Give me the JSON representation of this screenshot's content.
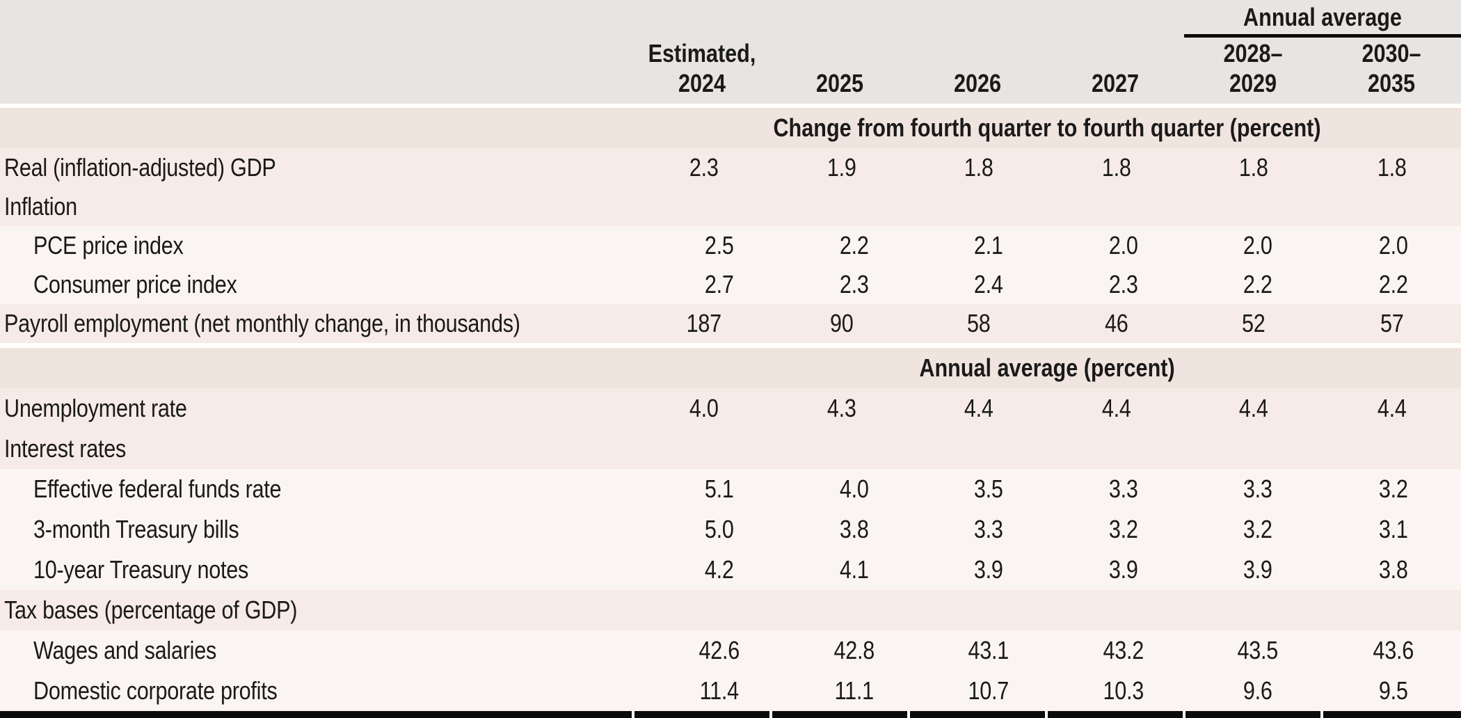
{
  "table": {
    "annual_average_label": "Annual average",
    "columns": [
      {
        "line1": "Estimated,",
        "line2": "2024"
      },
      {
        "line1": "",
        "line2": "2025"
      },
      {
        "line1": "",
        "line2": "2026"
      },
      {
        "line1": "",
        "line2": "2027"
      },
      {
        "line1": "2028–",
        "line2": "2029"
      },
      {
        "line1": "2030–",
        "line2": "2035"
      }
    ],
    "sections": [
      {
        "heading": "Change from fourth quarter to fourth quarter (percent)",
        "rows": [
          {
            "label": "Real (inflation-adjusted) GDP",
            "indent": 0,
            "shade": "pink",
            "values": [
              "2.3",
              "1.9",
              "1.8",
              "1.8",
              "1.8",
              "1.8"
            ]
          },
          {
            "label": "Inflation",
            "indent": 0,
            "shade": "pink",
            "values": []
          },
          {
            "label": "PCE price index",
            "indent": 1,
            "shade": "light",
            "values": [
              "2.5",
              "2.2",
              "2.1",
              "2.0",
              "2.0",
              "2.0"
            ]
          },
          {
            "label": "Consumer price index",
            "indent": 1,
            "shade": "light",
            "values": [
              "2.7",
              "2.3",
              "2.4",
              "2.3",
              "2.2",
              "2.2"
            ]
          },
          {
            "label": "Payroll employment (net monthly change, in thousands)",
            "indent": 0,
            "shade": "pink",
            "values": [
              "187",
              "90",
              "58",
              "46",
              "52",
              "57"
            ]
          }
        ]
      },
      {
        "heading": "Annual average (percent)",
        "rows": [
          {
            "label": "Unemployment rate",
            "indent": 0,
            "shade": "pink",
            "values": [
              "4.0",
              "4.3",
              "4.4",
              "4.4",
              "4.4",
              "4.4"
            ]
          },
          {
            "label": "Interest rates",
            "indent": 0,
            "shade": "pink",
            "values": []
          },
          {
            "label": "Effective federal funds rate",
            "indent": 1,
            "shade": "light",
            "values": [
              "5.1",
              "4.0",
              "3.5",
              "3.3",
              "3.3",
              "3.2"
            ]
          },
          {
            "label": "3-month Treasury bills",
            "indent": 1,
            "shade": "light",
            "values": [
              "5.0",
              "3.8",
              "3.3",
              "3.2",
              "3.2",
              "3.1"
            ]
          },
          {
            "label": "10-year Treasury notes",
            "indent": 1,
            "shade": "light",
            "values": [
              "4.2",
              "4.1",
              "3.9",
              "3.9",
              "3.9",
              "3.8"
            ]
          },
          {
            "label": "Tax bases (percentage of GDP)",
            "indent": 0,
            "shade": "pink",
            "values": []
          },
          {
            "label": "Wages and salaries",
            "indent": 1,
            "shade": "light",
            "values": [
              "42.6",
              "42.8",
              "43.1",
              "43.2",
              "43.5",
              "43.6"
            ]
          },
          {
            "label": "Domestic corporate profits",
            "indent": 1,
            "shade": "light",
            "values": [
              "11.4",
              "11.1",
              "10.7",
              "10.3",
              "9.6",
              "9.5"
            ]
          }
        ]
      }
    ],
    "colors": {
      "header_bg": "#e8e4e1",
      "section_band_bg": "#f0e4de",
      "row_pink_bg": "#f6ebe6",
      "row_light_bg": "#faf5f2",
      "rule_black": "#0b0b0b",
      "text": "#1a1a1a"
    }
  }
}
